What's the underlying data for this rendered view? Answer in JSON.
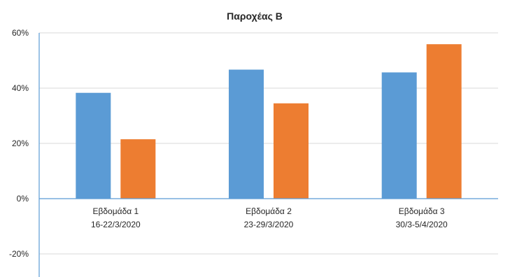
{
  "chart_data": {
    "type": "bar",
    "title": "Παροχέας Β",
    "categories": [
      [
        "Εβδομάδα 1",
        "16-22/3/2020"
      ],
      [
        "Εβδομάδα 2",
        "23-29/3/2020"
      ],
      [
        "Εβδομάδα 3",
        "30/3-5/4/2020"
      ]
    ],
    "series": [
      {
        "values": [
          0.383,
          0.467,
          0.457
        ],
        "color": "#5B9BD5"
      },
      {
        "values": [
          0.215,
          0.345,
          0.559
        ],
        "color": "#ED7D31"
      }
    ],
    "ylim": [
      -0.2,
      0.6
    ],
    "yticks": [
      {
        "value": 0.6,
        "label": "60%"
      },
      {
        "value": 0.4,
        "label": "40%"
      },
      {
        "value": 0.2,
        "label": "20%"
      },
      {
        "value": 0,
        "label": "0%"
      },
      {
        "value": -0.2,
        "label": "-20%"
      }
    ],
    "grid": true,
    "legend": "none"
  }
}
